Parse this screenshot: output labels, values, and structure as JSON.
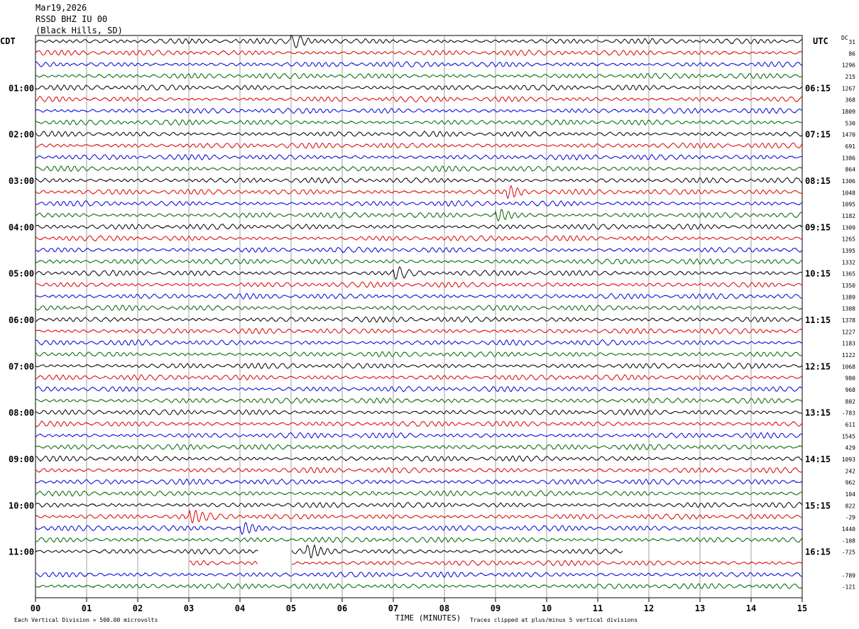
{
  "header": {
    "date": "Mar19,2026",
    "station": "RSSD BHZ IU 00",
    "location": "(Black Hills, SD)"
  },
  "chart_data": {
    "type": "line",
    "left_tz": "CDT",
    "right_tz": "UTC",
    "dc_label": "DC",
    "xlabel": "TIME (MINUTES)",
    "xlim": [
      0,
      15
    ],
    "x_ticks": [
      "00",
      "01",
      "02",
      "03",
      "04",
      "05",
      "06",
      "07",
      "08",
      "09",
      "10",
      "11",
      "12",
      "13",
      "14",
      "15"
    ],
    "minutes_per_trace": 15,
    "trace_colors": [
      "#000000",
      "#dd0000",
      "#0000dd",
      "#006400"
    ],
    "left_hour_labels": [
      "01:00",
      "02:00",
      "03:00",
      "04:00",
      "05:00",
      "06:00",
      "07:00",
      "08:00",
      "09:00",
      "10:00",
      "11:00"
    ],
    "right_hour_labels": [
      "06:15",
      "07:15",
      "08:15",
      "09:15",
      "10:15",
      "11:15",
      "12:15",
      "13:15",
      "14:15",
      "15:15",
      "16:15"
    ],
    "dc_offsets": [
      31,
      86,
      1296,
      215,
      1267,
      368,
      1809,
      530,
      1470,
      691,
      1386,
      864,
      1306,
      1048,
      1095,
      1182,
      1309,
      1265,
      1395,
      1332,
      1365,
      1350,
      1389,
      1308,
      1378,
      1227,
      1183,
      1122,
      1068,
      980,
      968,
      802,
      -783,
      611,
      1545,
      429,
      1093,
      242,
      962,
      104,
      822,
      -29,
      1440,
      -108,
      -725,
      "",
      -789,
      -121
    ],
    "footer_left": "Each Vertical Division =  500.00 microvolts",
    "footer_right": "Traces clipped at plus/minus 5 vertical divisions"
  }
}
